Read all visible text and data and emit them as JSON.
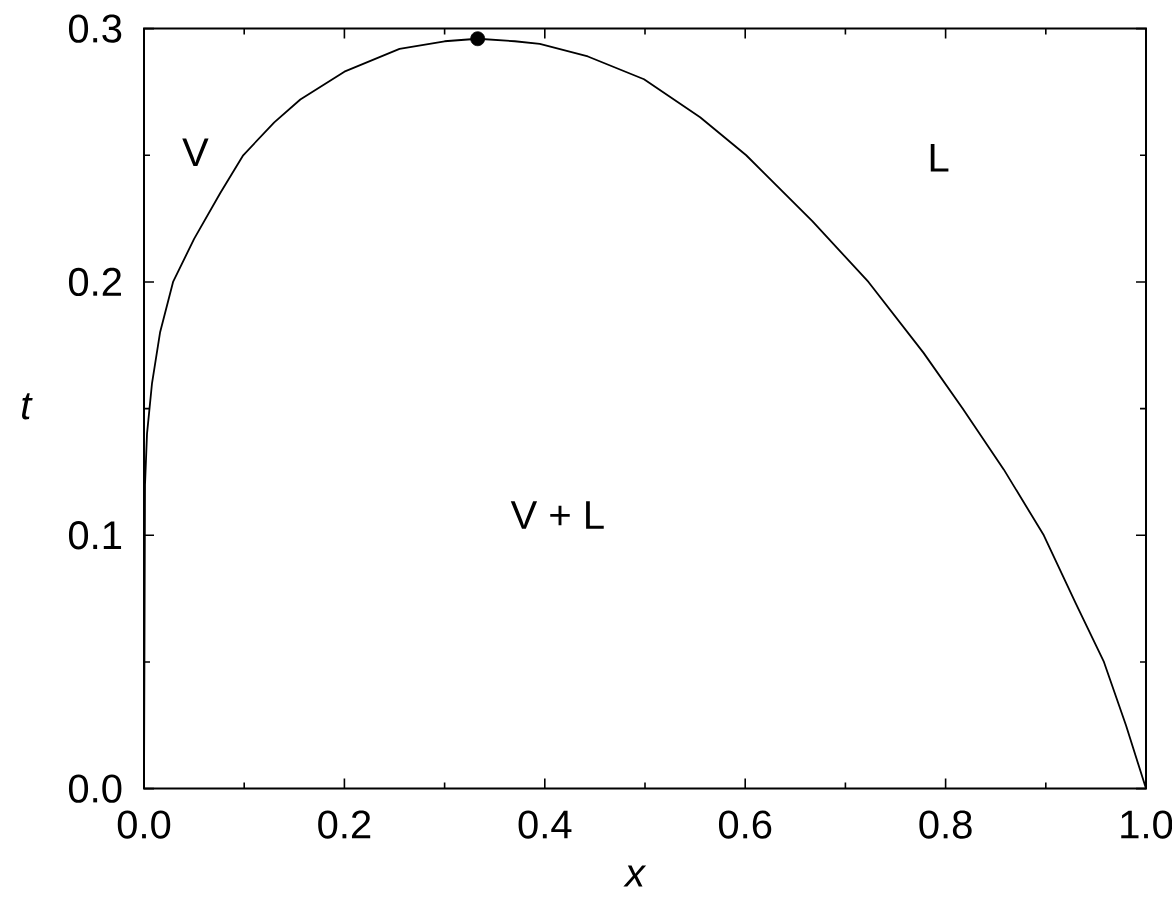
{
  "chart_data": {
    "type": "line",
    "xlabel": "x",
    "ylabel": "t",
    "xlim": [
      0,
      1
    ],
    "ylim": [
      0,
      0.3
    ],
    "xticks": [
      {
        "value": 0,
        "label": "0.0"
      },
      {
        "value": 0.1,
        "label": null
      },
      0.2,
      {
        "value": 0.3,
        "label": null
      },
      0.4,
      {
        "value": 0.5,
        "label": null
      },
      0.6,
      {
        "value": 0.7,
        "label": null
      },
      0.8,
      {
        "value": 0.9,
        "label": null
      },
      {
        "value": 1,
        "label": "1.0"
      }
    ],
    "yticks": [
      {
        "value": 0,
        "label": "0.0"
      },
      {
        "value": 0.05,
        "label": null
      },
      0.1,
      {
        "value": 0.15,
        "label": null
      },
      0.2,
      {
        "value": 0.25,
        "label": null
      },
      0.3
    ],
    "marker": "none",
    "series": [
      {
        "color": "#000000",
        "x": [
          0,
          0.001,
          0.003,
          0.008,
          0.016,
          0.029,
          0.05,
          0.076,
          0.099,
          0.13,
          0.156,
          0.2,
          0.255,
          0.3,
          0.333,
          0.37,
          0.395,
          0.443,
          0.499,
          0.555,
          0.601,
          0.667,
          0.723,
          0.778,
          0.817,
          0.858,
          0.898,
          0.93,
          0.958,
          0.98,
          1
        ],
        "values": [
          0,
          0.12,
          0.14,
          0.16,
          0.18,
          0.2,
          0.217,
          0.235,
          0.25,
          0.263,
          0.272,
          0.283,
          0.292,
          0.295,
          0.296,
          0.295,
          0.294,
          0.289,
          0.28,
          0.265,
          0.25,
          0.224,
          0.2,
          0.172,
          0.15,
          0.126,
          0.1,
          0.073,
          0.05,
          0.025,
          0
        ]
      },
      {
        "type": "scatter",
        "color": "#000000",
        "marker": "circle",
        "x": [
          0.333
        ],
        "values": [
          0.296
        ]
      }
    ],
    "annotations": [
      "V",
      "L",
      "V + L"
    ]
  }
}
